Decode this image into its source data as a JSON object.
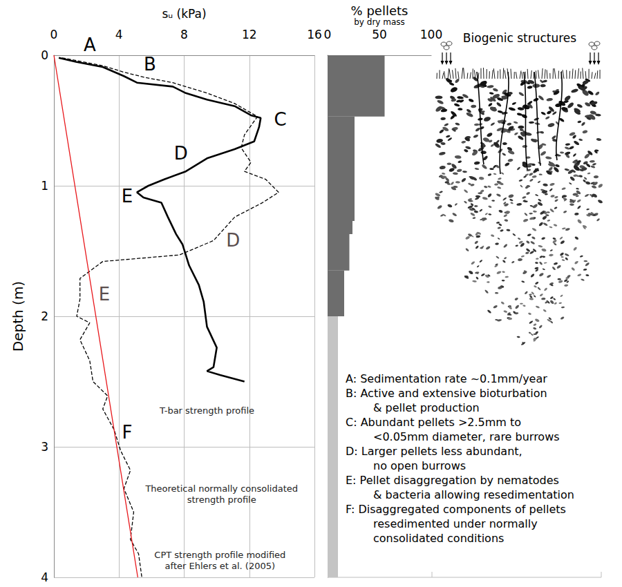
{
  "chart_data": [
    {
      "type": "line",
      "x_label": "sᵤ (kPa)",
      "y_label": "Depth (m)",
      "xlim": [
        0,
        16
      ],
      "xticks": [
        0,
        4,
        8,
        12,
        16
      ],
      "ylim": [
        0,
        4
      ],
      "yticks": [
        0,
        1,
        2,
        3,
        4
      ],
      "grid": true,
      "series": [
        {
          "color": "#000000",
          "line_style": "solid",
          "x": [
            0.3,
            1.35,
            3.0,
            4.3,
            5.1,
            7.3,
            8.1,
            9.4,
            11.1,
            12.1,
            12.7,
            12.6,
            12.3,
            11.1,
            9.4,
            8.1,
            6.8,
            5.8,
            5.1,
            5.5,
            6.6,
            7.0,
            7.5,
            7.9,
            8.3,
            8.9,
            9.2,
            9.4,
            10.0,
            9.8,
            9.4,
            10.2,
            11.7
          ],
          "y": [
            0.02,
            0.05,
            0.09,
            0.16,
            0.21,
            0.24,
            0.29,
            0.34,
            0.39,
            0.46,
            0.48,
            0.55,
            0.66,
            0.72,
            0.79,
            0.89,
            0.95,
            1.0,
            1.05,
            1.09,
            1.13,
            1.24,
            1.37,
            1.45,
            1.61,
            1.76,
            1.89,
            2.08,
            2.24,
            2.39,
            2.42,
            2.45,
            2.5
          ]
        },
        {
          "color": "#000000",
          "line_style": "dashed",
          "x": [
            0.5,
            3.0,
            4.3,
            5.6,
            7.3,
            9.4,
            11.1,
            12.5,
            11.7,
            11.5,
            12.1,
            11.7,
            13.0,
            13.8,
            12.8,
            11.1,
            9.8,
            7.7,
            3.0,
            1.6,
            1.6,
            1.4,
            2.2,
            1.6,
            2.2,
            2.4,
            3.3,
            3.0,
            3.7,
            4.1,
            4.7,
            4.3,
            4.9,
            4.7,
            5.2,
            5.4
          ],
          "y": [
            0.02,
            0.08,
            0.13,
            0.17,
            0.21,
            0.29,
            0.37,
            0.47,
            0.61,
            0.71,
            0.82,
            0.89,
            0.95,
            1.05,
            1.13,
            1.24,
            1.42,
            1.53,
            1.58,
            1.71,
            1.87,
            2.0,
            2.05,
            2.18,
            2.34,
            2.5,
            2.61,
            2.71,
            2.87,
            3.03,
            3.18,
            3.32,
            3.5,
            3.71,
            3.82,
            4.0
          ]
        },
        {
          "color": "#e8171b",
          "line_style": "solid",
          "x": [
            0,
            5.15
          ],
          "y": [
            0,
            4
          ]
        }
      ],
      "annotations": [
        {
          "text": "A",
          "x": 2.2,
          "y": -0.08,
          "color": "#000000"
        },
        {
          "text": "B",
          "x": 5.9,
          "y": 0.07,
          "color": "#000000"
        },
        {
          "text": "C",
          "x": 13.9,
          "y": 0.49,
          "color": "#000000"
        },
        {
          "text": "D",
          "x": 7.8,
          "y": 0.75,
          "color": "#000000"
        },
        {
          "text": "E",
          "x": 4.5,
          "y": 1.08,
          "color": "#000000"
        },
        {
          "text": "D",
          "x": 11.0,
          "y": 1.42,
          "color": "#5a4e4e"
        },
        {
          "text": "E",
          "x": 3.1,
          "y": 1.83,
          "color": "#5a4e4e"
        },
        {
          "text": "F",
          "x": 4.5,
          "y": 2.89,
          "color": "#000000"
        },
        {
          "text": "T-bar strength profile",
          "x": 9.4,
          "y": 2.72,
          "color": "#222222"
        },
        {
          "text": "Theoretical normally consolidated strength profile",
          "x": 10.3,
          "y": 3.36,
          "color": "#222222"
        },
        {
          "text": "CPT strength profile modified after Ehlers et al. (2005)",
          "x": 10.2,
          "y": 3.87,
          "color": "#222222"
        }
      ]
    },
    {
      "type": "bar",
      "orientation": "horizontal",
      "title": "% pellets",
      "subtitle": "by dry mass",
      "xlim": [
        0,
        100
      ],
      "xticks": [
        0,
        50,
        100
      ],
      "ylim": [
        0,
        4
      ],
      "tick_labels": "x",
      "grid": false,
      "depth_top": [
        0,
        0.47,
        1.27,
        1.37,
        1.65,
        2.0
      ],
      "depth_bottom": [
        0.47,
        1.27,
        1.37,
        1.65,
        2.0,
        4.0
      ],
      "values": [
        55,
        26,
        24,
        21,
        16,
        10
      ],
      "colors": [
        "#6d6d6d",
        "#6d6d6d",
        "#6d6d6d",
        "#6d6d6d",
        "#6d6d6d",
        "#c4c4c4"
      ]
    }
  ],
  "biogenic_structures": {
    "title": "Biogenic structures"
  },
  "key": [
    [
      "A: Sedimentation rate ~0.1mm/year"
    ],
    [
      "B: Active and extensive bioturbation",
      "& pellet production"
    ],
    [
      "C: Abundant pellets >2.5mm to",
      "<0.05mm diameter, rare burrows"
    ],
    [
      "D: Larger pellets less abundant,",
      "no open burrows"
    ],
    [
      "E: Pellet disaggregation by nematodes",
      "& bacteria allowing resedimentation"
    ],
    [
      "F: Disaggregated components of pellets",
      "resedimented under normally",
      "consolidated conditions"
    ]
  ]
}
